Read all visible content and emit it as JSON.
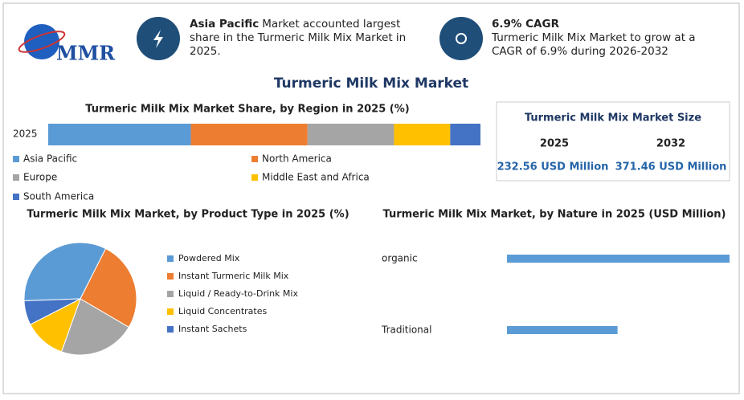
{
  "header": {
    "logo": "MMR",
    "highlights": [
      {
        "bold": "Asia Pacific",
        "text": "Market accounted largest share in the Turmeric Milk Mix Market in 2025."
      },
      {
        "bold": "6.9% CAGR",
        "text": "Turmeric Milk Mix Market to grow at a CAGR of 6.9% during 2026-2032"
      }
    ]
  },
  "title": "Turmeric Milk Mix Market",
  "market_size": {
    "title": "Turmeric Milk Mix Market Size",
    "columns": [
      "2025",
      "2032"
    ],
    "values": [
      "232.56 USD Million",
      "371.46 USD Million"
    ]
  },
  "chart_data": [
    {
      "type": "stacked-bar",
      "title": "Turmeric Milk Mix Market Share, by Region in 2025 (%)",
      "categories": [
        "2025"
      ],
      "xlim": [
        0,
        100
      ],
      "series": [
        {
          "name": "Asia Pacific",
          "color": "#5b9bd5",
          "values": [
            33
          ]
        },
        {
          "name": "North America",
          "color": "#ed7d31",
          "values": [
            27
          ]
        },
        {
          "name": "Europe",
          "color": "#a5a5a5",
          "values": [
            20
          ]
        },
        {
          "name": "Middle East and Africa",
          "color": "#ffc000",
          "values": [
            13
          ]
        },
        {
          "name": "South America",
          "color": "#4472c4",
          "values": [
            7
          ]
        }
      ]
    },
    {
      "type": "pie",
      "title": "Turmeric Milk Mix Market, by Product Type in 2025 (%)",
      "categories": [
        "Powdered Mix",
        "Instant Turmeric Milk Mix",
        "Liquid / Ready-to-Drink Mix",
        "Liquid Concentrates",
        "Instant Sachets"
      ],
      "values": [
        33,
        26,
        22,
        12,
        7
      ],
      "colors": [
        "#5b9bd5",
        "#ed7d31",
        "#a5a5a5",
        "#ffc000",
        "#4472c4"
      ]
    },
    {
      "type": "hbar",
      "title": "Turmeric Milk Mix Market, by Nature in 2025 (USD Million)",
      "categories": [
        "organic",
        "Traditional"
      ],
      "values": [
        155,
        77
      ],
      "xlim": [
        0,
        155
      ],
      "color": "#5b9bd5"
    }
  ]
}
